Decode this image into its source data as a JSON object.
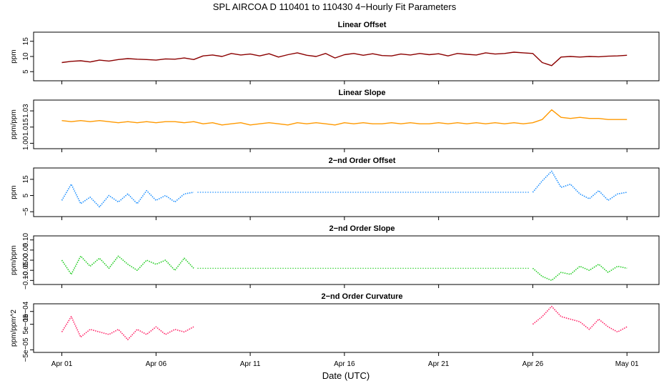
{
  "title": "SPL   AIRCOA D   110401 to 110430   4−Hourly Fit Parameters",
  "xlabel": "Date (UTC)",
  "x_ticks": [
    "Apr 01",
    "Apr 06",
    "Apr 11",
    "Apr 16",
    "Apr 21",
    "Apr 26",
    "May 01"
  ],
  "chart_data": [
    {
      "type": "line",
      "title": "Linear Offset",
      "ylabel": "ppm",
      "ylim": [
        2,
        18
      ],
      "yticks": [
        5,
        10,
        15
      ],
      "ytick_labels": [
        "5",
        "10",
        "15"
      ],
      "color": "#8b0000",
      "x": [
        0,
        0.5,
        1,
        1.5,
        2,
        2.5,
        3,
        3.5,
        4,
        4.5,
        5,
        5.5,
        6,
        6.5,
        7,
        7.5,
        8,
        8.5,
        9,
        9.5,
        10,
        10.5,
        11,
        11.5,
        12,
        12.5,
        13,
        13.5,
        14,
        14.5,
        15,
        15.5,
        16,
        16.5,
        17,
        17.5,
        18,
        18.5,
        19,
        19.5,
        20,
        20.5,
        21,
        21.5,
        22,
        22.5,
        23,
        23.5,
        24,
        24.5,
        25,
        25.5,
        26,
        26.5,
        27,
        27.5,
        28,
        28.5,
        29,
        29.5,
        30
      ],
      "values": [
        8.0,
        8.4,
        8.6,
        8.2,
        8.8,
        8.5,
        9.0,
        9.3,
        9.1,
        9.0,
        8.8,
        9.2,
        9.1,
        9.5,
        9.0,
        10.2,
        10.5,
        10.0,
        11.0,
        10.5,
        10.8,
        10.2,
        10.9,
        9.8,
        10.6,
        11.2,
        10.4,
        10.0,
        11.0,
        9.5,
        10.6,
        11.0,
        10.4,
        10.9,
        10.3,
        10.2,
        10.8,
        10.5,
        11.0,
        10.6,
        10.9,
        10.2,
        11.0,
        10.7,
        10.5,
        11.2,
        10.8,
        11.0,
        11.4,
        11.2,
        11.0,
        8.0,
        7.0,
        9.8,
        10.0,
        9.8,
        10.0,
        9.9,
        10.1,
        10.2,
        10.4
      ],
      "gaps": []
    },
    {
      "type": "line",
      "title": "Linear Slope",
      "ylabel": "ppm/ppm",
      "ylim": [
        0.995,
        1.04
      ],
      "yticks": [
        1.0,
        1.015,
        1.03
      ],
      "ytick_labels": [
        "1.00",
        "1.015",
        "1.03"
      ],
      "color": "#ff9900",
      "x": [
        0,
        0.5,
        1,
        1.5,
        2,
        2.5,
        3,
        3.5,
        4,
        4.5,
        5,
        5.5,
        6,
        6.5,
        7,
        7.5,
        8,
        8.5,
        9,
        9.5,
        10,
        10.5,
        11,
        11.5,
        12,
        12.5,
        13,
        13.5,
        14,
        14.5,
        15,
        15.5,
        16,
        16.5,
        17,
        17.5,
        18,
        18.5,
        19,
        19.5,
        20,
        20.5,
        21,
        21.5,
        22,
        22.5,
        23,
        23.5,
        24,
        24.5,
        25,
        25.5,
        26,
        26.5,
        27,
        27.5,
        28,
        28.5,
        29,
        29.5,
        30
      ],
      "values": [
        1.021,
        1.02,
        1.021,
        1.02,
        1.021,
        1.02,
        1.019,
        1.02,
        1.019,
        1.02,
        1.019,
        1.02,
        1.02,
        1.019,
        1.02,
        1.018,
        1.019,
        1.017,
        1.018,
        1.019,
        1.017,
        1.018,
        1.019,
        1.018,
        1.017,
        1.019,
        1.018,
        1.019,
        1.018,
        1.017,
        1.019,
        1.018,
        1.019,
        1.018,
        1.018,
        1.019,
        1.018,
        1.019,
        1.018,
        1.018,
        1.019,
        1.018,
        1.019,
        1.018,
        1.019,
        1.018,
        1.019,
        1.018,
        1.019,
        1.018,
        1.019,
        1.022,
        1.031,
        1.024,
        1.023,
        1.024,
        1.023,
        1.023,
        1.022,
        1.022,
        1.022
      ],
      "gaps": []
    },
    {
      "type": "line",
      "title": "2−nd Order Offset",
      "ylabel": "ppm",
      "ylim": [
        -8,
        22
      ],
      "yticks": [
        -5,
        5,
        15
      ],
      "ytick_labels": [
        "−5",
        "5",
        "15"
      ],
      "color": "#1e90ff",
      "x": [
        0,
        0.5,
        1,
        1.5,
        2,
        2.5,
        3,
        3.5,
        4,
        4.5,
        5,
        5.5,
        6,
        6.5,
        7,
        25,
        25.5,
        26,
        26.5,
        27,
        27.5,
        28,
        28.5,
        29,
        29.5,
        30
      ],
      "values": [
        2,
        12,
        0,
        4,
        -2,
        5,
        1,
        6,
        0,
        8,
        2,
        5,
        1,
        6,
        7,
        7,
        14,
        20,
        10,
        12,
        6,
        3,
        8,
        2,
        6,
        7
      ],
      "gaps": [
        [
          7.2,
          24.8
        ]
      ]
    },
    {
      "type": "line",
      "title": "2−nd Order Slope",
      "ylabel": "ppm/ppm",
      "ylim": [
        -0.12,
        0.12
      ],
      "yticks": [
        -0.1,
        -0.05,
        0.0,
        0.05,
        0.1
      ],
      "ytick_labels": [
        "−0.10",
        "−0.05",
        "0.00",
        "0.05",
        "0.10"
      ],
      "color": "#22cc22",
      "x": [
        0,
        0.5,
        1,
        1.5,
        2,
        2.5,
        3,
        3.5,
        4,
        4.5,
        5,
        5.5,
        6,
        6.5,
        7,
        25,
        25.5,
        26,
        26.5,
        27,
        27.5,
        28,
        28.5,
        29,
        29.5,
        30
      ],
      "values": [
        0.0,
        -0.07,
        0.02,
        -0.03,
        0.01,
        -0.04,
        0.02,
        -0.02,
        -0.05,
        0.0,
        -0.02,
        0.0,
        -0.05,
        0.01,
        -0.04,
        -0.04,
        -0.08,
        -0.1,
        -0.06,
        -0.07,
        -0.03,
        -0.05,
        -0.02,
        -0.06,
        -0.03,
        -0.04
      ],
      "gaps": [
        [
          7.2,
          24.8
        ]
      ]
    },
    {
      "type": "line",
      "title": "2−nd Order Curvature",
      "ylabel": "ppm/ppm^2",
      "ylim": [
        -6e-05,
        0.00013
      ],
      "yticks": [
        -5e-05,
        5e-05,
        0.0001
      ],
      "ytick_labels": [
        "−5e−05",
        "5e−05",
        "1e−04"
      ],
      "color": "#ff2266",
      "x": [
        0,
        0.5,
        1,
        1.5,
        2,
        2.5,
        3,
        3.5,
        4,
        4.5,
        5,
        5.5,
        6,
        6.5,
        7,
        25,
        25.5,
        26,
        26.5,
        27,
        27.5,
        28,
        28.5,
        29,
        29.5,
        30
      ],
      "values": [
        2e-05,
        8e-05,
        0.0,
        3e-05,
        2e-05,
        1e-05,
        3e-05,
        -1e-05,
        3e-05,
        1e-05,
        4e-05,
        1e-05,
        3e-05,
        2e-05,
        4e-05,
        5e-05,
        8e-05,
        0.00012,
        8e-05,
        7e-05,
        6e-05,
        3e-05,
        7e-05,
        4e-05,
        2e-05,
        4e-05
      ],
      "gaps": []
    }
  ]
}
